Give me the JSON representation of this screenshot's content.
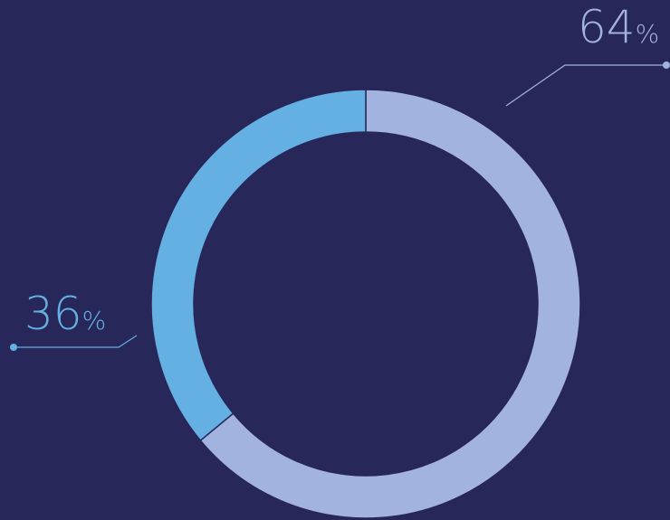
{
  "background_color": "#27275a",
  "chart_data": {
    "type": "pie",
    "variant": "donut",
    "title": "",
    "legend": "none",
    "slices": [
      {
        "value": 64,
        "value_text": "64",
        "unit": "%",
        "color": "#a2b3df"
      },
      {
        "value": 36,
        "value_text": "36",
        "unit": "%",
        "color": "#65b0e2"
      }
    ]
  }
}
